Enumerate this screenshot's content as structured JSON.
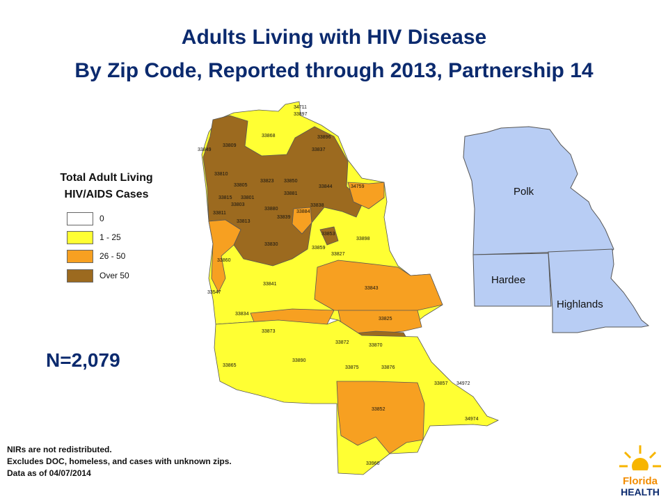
{
  "title": {
    "line1": "Adults Living with HIV Disease",
    "line2": "By Zip Code, Reported through 2013, Partnership 14"
  },
  "legend": {
    "title_line1": "Total Adult Living",
    "title_line2": "HIV/AIDS Cases",
    "items": [
      {
        "label": "0",
        "color": "#ffffff"
      },
      {
        "label": "1 - 25",
        "color": "#ffff33"
      },
      {
        "label": "26 - 50",
        "color": "#f7a021"
      },
      {
        "label": "Over 50",
        "color": "#9c6a1f"
      }
    ]
  },
  "total": "N=2,079",
  "notes": [
    "NIRs are not redistributed.",
    "Excludes DOC, homeless, and cases with unknown zips.",
    "Data as of 04/07/2014"
  ],
  "counties": [
    "Polk",
    "Hardee",
    "Highlands"
  ],
  "county_color": "#b8cdf4",
  "zip_labels": [
    "34711",
    "33897",
    "33868",
    "33896",
    "33849",
    "33809",
    "33837",
    "33810",
    "33805",
    "33823",
    "33850",
    "33844",
    "34759",
    "33815",
    "33801",
    "33881",
    "33803",
    "33880",
    "33884",
    "33838",
    "33811",
    "33813",
    "33839",
    "33853",
    "33898",
    "33830",
    "33859",
    "33827",
    "33860",
    "33841",
    "33547",
    "33843",
    "33834",
    "33825",
    "33873",
    "33872",
    "33870",
    "33865",
    "33890",
    "33875",
    "33876",
    "33857",
    "34972",
    "33852",
    "34974",
    "33960"
  ],
  "logo": {
    "line1": "Florida",
    "line2": "HEALTH"
  }
}
